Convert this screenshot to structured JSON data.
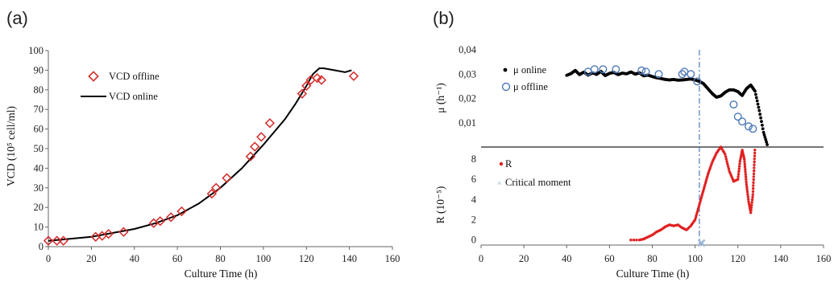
{
  "chart_data": [
    {
      "panel_label": "(a)",
      "type": "line",
      "xlabel": "Culture Time (h)",
      "ylabel": "VCD (10⁵ cell/ml)",
      "xlim": [
        0,
        160
      ],
      "ylim": [
        0,
        100
      ],
      "xticks": [
        "0",
        "20",
        "40",
        "60",
        "80",
        "100",
        "120",
        "140",
        "160"
      ],
      "yticks": [
        "0",
        "10",
        "20",
        "30",
        "40",
        "50",
        "60",
        "70",
        "80",
        "90",
        "100"
      ],
      "legend_position": "top-left",
      "series": [
        {
          "name": "VCD offline",
          "kind": "scatter",
          "marker": "diamond-open",
          "color": "#d42a2a",
          "x": [
            0,
            4,
            7,
            22,
            25,
            28,
            35,
            49,
            52,
            57,
            62,
            76,
            78,
            83,
            94,
            96,
            99,
            103,
            118,
            120,
            122,
            125,
            127,
            142
          ],
          "y": [
            3,
            3,
            3,
            5,
            5.5,
            6.5,
            7.5,
            12,
            13,
            15,
            18,
            27,
            30,
            35,
            46,
            51,
            56,
            63,
            78,
            82,
            85,
            86,
            85,
            87
          ]
        },
        {
          "name": "VCD online",
          "kind": "line",
          "color": "#000000",
          "x": [
            0,
            10,
            20,
            30,
            40,
            50,
            60,
            70,
            80,
            90,
            100,
            110,
            115,
            120,
            123,
            126,
            128,
            133,
            138,
            141
          ],
          "y": [
            3,
            4,
            5,
            7,
            9,
            12,
            16,
            22,
            30,
            40,
            52,
            65,
            73,
            82,
            88,
            91,
            91,
            90,
            89,
            90
          ]
        }
      ]
    },
    {
      "panel_label": "(b)",
      "type": "scatter",
      "xlabel": "Culture Time (h)",
      "xlim": [
        0,
        160
      ],
      "xticks": [
        "0",
        "20",
        "40",
        "60",
        "80",
        "100",
        "120",
        "140",
        "160"
      ],
      "critical_line_x": 102,
      "upper": {
        "ylabel": "μ (h⁻¹)",
        "ylim": [
          0,
          0.04
        ],
        "yticks": [
          "0,01",
          "0,02",
          "0,03",
          "0,04"
        ],
        "series": [
          {
            "name": "μ online",
            "kind": "dots",
            "color": "#000000",
            "x": [
              40,
              42,
              44,
              46,
              48,
              50,
              52,
              54,
              56,
              58,
              60,
              62,
              64,
              66,
              68,
              70,
              72,
              74,
              76,
              78,
              80,
              82,
              84,
              86,
              88,
              90,
              92,
              94,
              96,
              98,
              100,
              102,
              104,
              106,
              108,
              110,
              112,
              114,
              116,
              118,
              120,
              122,
              124,
              126,
              128,
              130,
              132,
              134
            ],
            "y": [
              0.0295,
              0.0302,
              0.0315,
              0.0298,
              0.0308,
              0.0296,
              0.0305,
              0.0299,
              0.0311,
              0.0294,
              0.0303,
              0.0307,
              0.0298,
              0.0304,
              0.0301,
              0.0309,
              0.03,
              0.0305,
              0.0293,
              0.0296,
              0.029,
              0.0285,
              0.0282,
              0.0278,
              0.0276,
              0.0278,
              0.0275,
              0.0276,
              0.0278,
              0.028,
              0.0276,
              0.027,
              0.026,
              0.024,
              0.022,
              0.0205,
              0.021,
              0.0225,
              0.0235,
              0.0235,
              0.0228,
              0.0212,
              0.024,
              0.0255,
              0.023,
              0.015,
              0.006,
              0.0
            ]
          },
          {
            "name": "μ offline",
            "kind": "scatter",
            "marker": "circle-open",
            "color": "#4f79b7",
            "x": [
              50,
              53,
              57,
              63,
              75,
              77,
              83,
              94,
              95,
              98,
              101,
              118,
              120,
              122,
              125,
              127
            ],
            "y": [
              0.031,
              0.032,
              0.032,
              0.032,
              0.0315,
              0.031,
              0.03,
              0.03,
              0.031,
              0.03,
              0.027,
              0.0175,
              0.0125,
              0.0105,
              0.0085,
              0.0075
            ]
          }
        ]
      },
      "lower": {
        "ylabel": "R (10⁻⁵)",
        "ylim": [
          -0.5,
          9.2
        ],
        "yticks": [
          "0",
          "2",
          "4",
          "6",
          "8"
        ],
        "series": [
          {
            "name": "R",
            "kind": "dots",
            "color": "#e02020",
            "x": [
              70,
              74,
              76,
              78,
              80,
              82,
              84,
              86,
              88,
              90,
              92,
              94,
              96,
              98,
              100,
              102,
              104,
              106,
              108,
              110,
              112,
              114,
              116,
              118,
              120,
              121,
              122,
              123,
              124,
              125,
              126,
              127,
              128
            ],
            "y": [
              0,
              0,
              0.1,
              0.3,
              0.5,
              0.8,
              1.0,
              1.3,
              1.5,
              1.4,
              1.5,
              1.2,
              1.0,
              1.4,
              2.0,
              3.5,
              5.0,
              6.5,
              7.7,
              8.6,
              9.2,
              8.5,
              6.8,
              5.8,
              6.0,
              7.8,
              8.9,
              8.0,
              5.5,
              3.8,
              2.7,
              4.5,
              9.2
            ]
          },
          {
            "name": "Critical moment",
            "kind": "marker",
            "marker": "cross",
            "color": "#9fb8d8",
            "x": [
              103
            ],
            "y": [
              -0.3
            ]
          }
        ]
      }
    }
  ]
}
